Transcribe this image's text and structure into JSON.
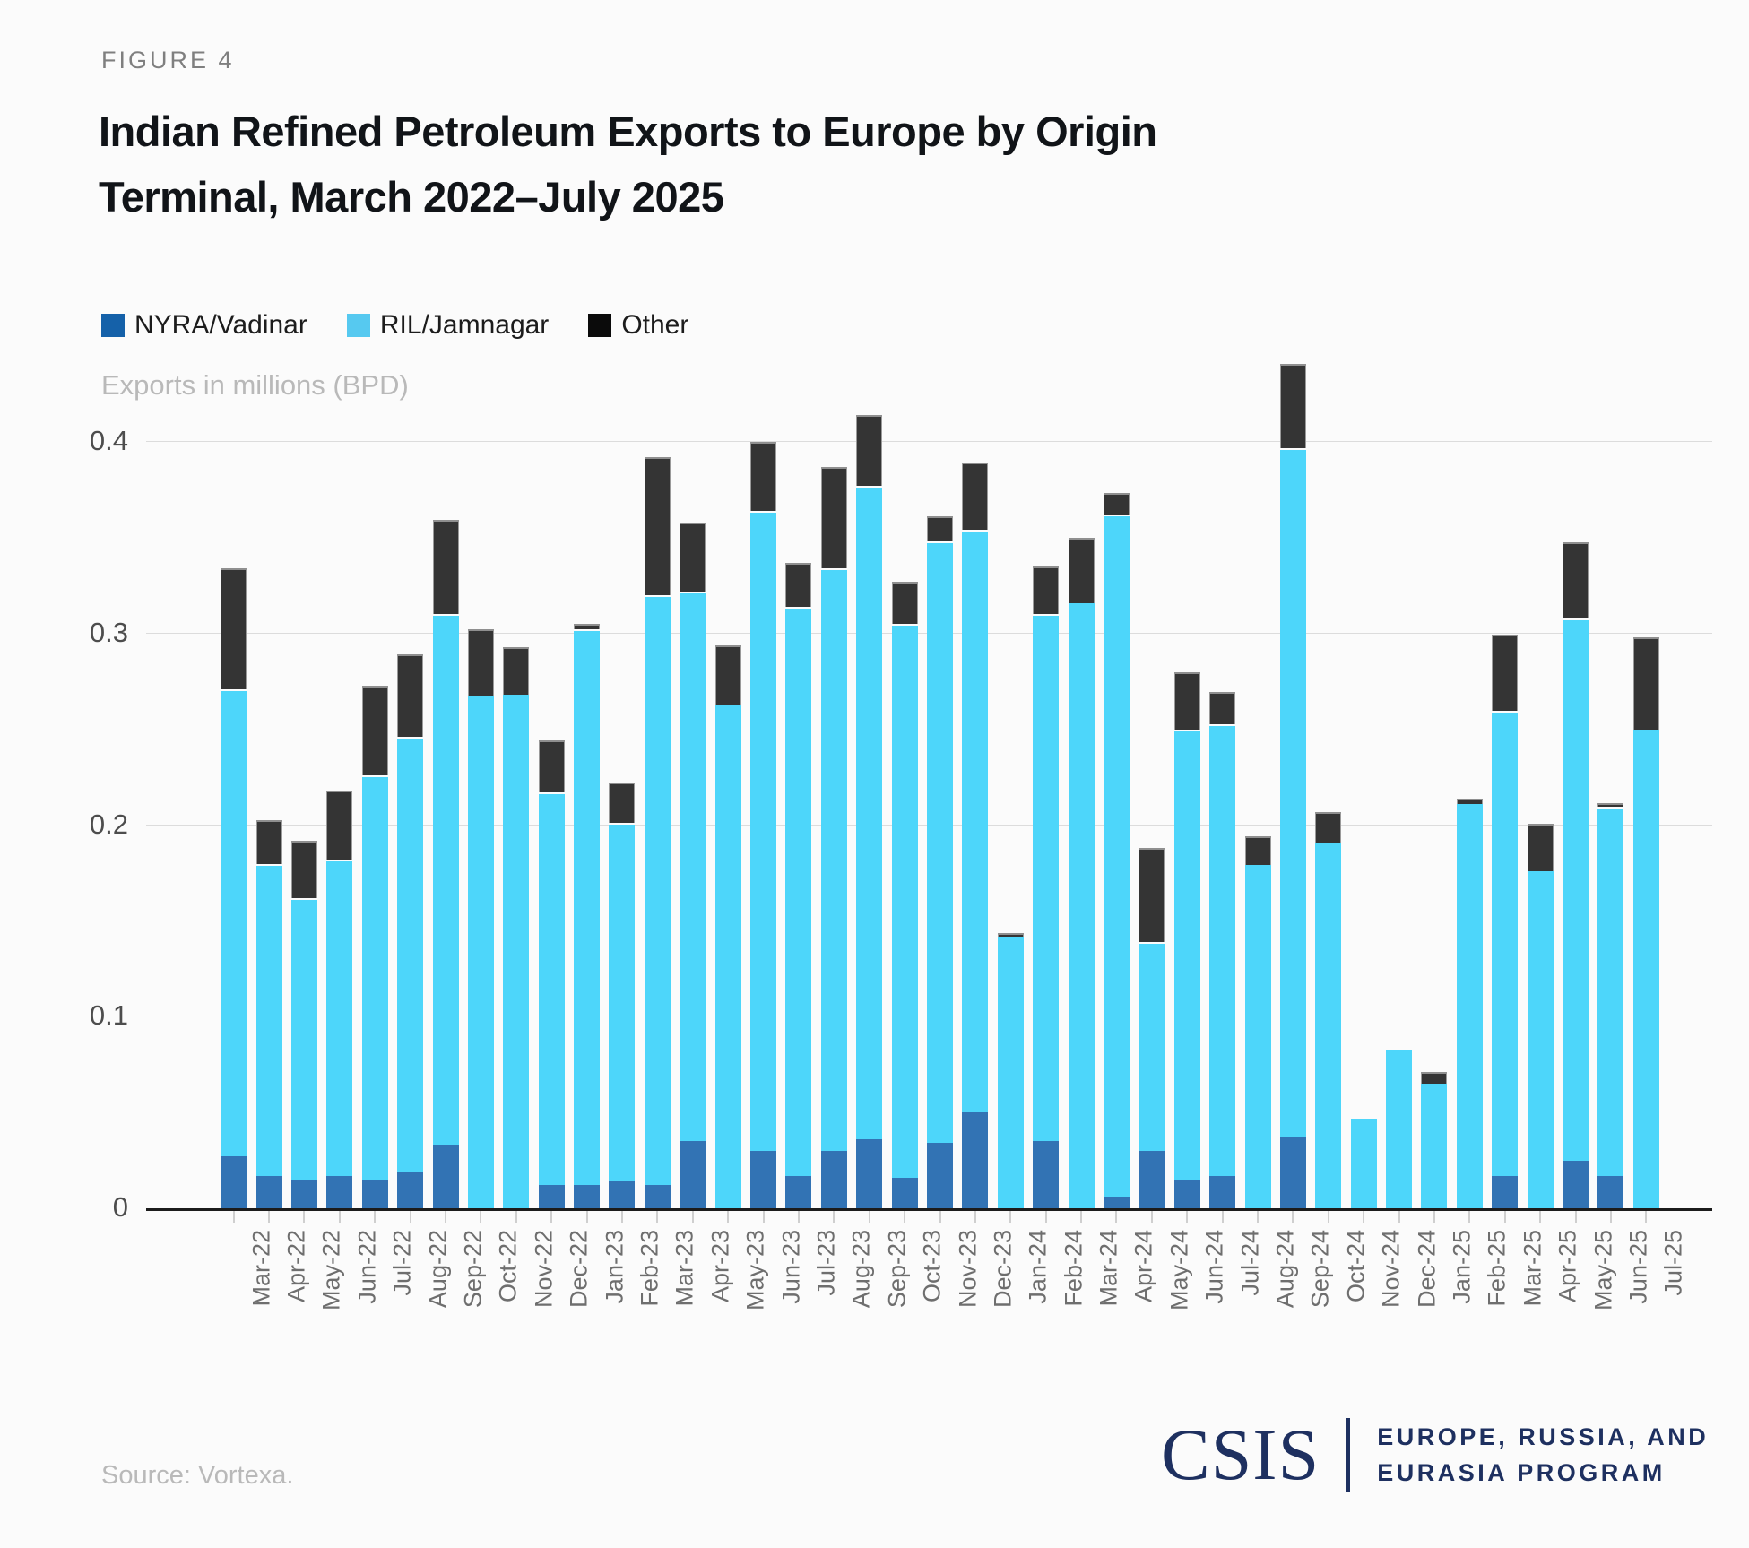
{
  "figure": {
    "kicker": "FIGURE 4",
    "title_lines": [
      "Indian Refined Petroleum Exports to Europe by Origin",
      "Terminal, March 2022–July 2025"
    ]
  },
  "legend": [
    {
      "label": "NYRA/Vadinar",
      "swatch": "#1561A9"
    },
    {
      "label": "RIL/Jamnagar",
      "swatch": "#56C9F0"
    },
    {
      "label": "Other",
      "swatch": "#0B0B0B"
    }
  ],
  "axis_title": "Exports in millions (BPD)",
  "chart_data": {
    "type": "bar",
    "stacked": true,
    "title": "Indian Refined Petroleum Exports to Europe by Origin Terminal, March 2022–July 2025",
    "ylabel": "Exports in millions (BPD)",
    "xlabel": "",
    "ylim": [
      0,
      0.46
    ],
    "yticks": [
      "0",
      "0.1",
      "0.2",
      "0.3",
      "0.4"
    ],
    "ytick_values": [
      0,
      0.1,
      0.2,
      0.3,
      0.4
    ],
    "grid": "horizontal",
    "legend_position": "top-left",
    "categories": [
      "Mar-22",
      "Apr-22",
      "May-22",
      "Jun-22",
      "Jul-22",
      "Aug-22",
      "Sep-22",
      "Oct-22",
      "Nov-22",
      "Dec-22",
      "Jan-23",
      "Feb-23",
      "Mar-23",
      "Apr-23",
      "May-23",
      "Jun-23",
      "Jul-23",
      "Aug-23",
      "Sep-23",
      "Oct-23",
      "Nov-23",
      "Dec-23",
      "Jan-24",
      "Feb-24",
      "Mar-24",
      "Apr-24",
      "May-24",
      "Jun-24",
      "Jul-24",
      "Aug-24",
      "Sep-24",
      "Oct-24",
      "Nov-24",
      "Dec-24",
      "Jan-25",
      "Feb-25",
      "Mar-25",
      "Apr-25",
      "May-25",
      "Jun-25",
      "Jul-25"
    ],
    "series": [
      {
        "name": "NYRA/Vadinar",
        "color": "#3273B4",
        "values": [
          0.027,
          0.017,
          0.015,
          0.017,
          0.015,
          0.019,
          0.033,
          0,
          0,
          0.012,
          0.012,
          0.014,
          0.012,
          0.035,
          0,
          0.03,
          0.017,
          0.03,
          0.036,
          0.016,
          0.034,
          0.05,
          0,
          0.035,
          0,
          0.006,
          0.03,
          0.015,
          0.017,
          0,
          0.037,
          0,
          0,
          0,
          0,
          0,
          0.017,
          0,
          0.025,
          0.017,
          0
        ]
      },
      {
        "name": "RIL/Jamnagar",
        "color": "#4DD6FA",
        "values": [
          0.244,
          0.163,
          0.147,
          0.165,
          0.211,
          0.227,
          0.277,
          0.267,
          0.268,
          0.205,
          0.29,
          0.187,
          0.308,
          0.287,
          0.263,
          0.334,
          0.297,
          0.304,
          0.341,
          0.289,
          0.314,
          0.304,
          0.142,
          0.275,
          0.316,
          0.356,
          0.109,
          0.235,
          0.236,
          0.179,
          0.36,
          0.191,
          0.047,
          0.083,
          0.065,
          0.211,
          0.243,
          0.176,
          0.283,
          0.193,
          0.25
        ]
      },
      {
        "name": "Other",
        "color": "#343434",
        "values": [
          0.063,
          0.023,
          0.03,
          0.036,
          0.047,
          0.043,
          0.049,
          0.035,
          0.025,
          0.027,
          0.003,
          0.021,
          0.072,
          0.036,
          0.031,
          0.036,
          0.023,
          0.053,
          0.037,
          0.022,
          0.013,
          0.035,
          0.002,
          0.025,
          0.034,
          0.011,
          0.049,
          0.03,
          0.017,
          0.015,
          0.044,
          0.016,
          0,
          0,
          0.006,
          0.003,
          0.04,
          0.025,
          0.04,
          0.002,
          0.048
        ]
      }
    ]
  },
  "footer": {
    "source": "Source: Vortexa.",
    "logo_text": "CSIS",
    "program_lines": [
      "EUROPE, RUSSIA, AND",
      "EURASIA PROGRAM"
    ],
    "logo_color": "#1E3060"
  }
}
